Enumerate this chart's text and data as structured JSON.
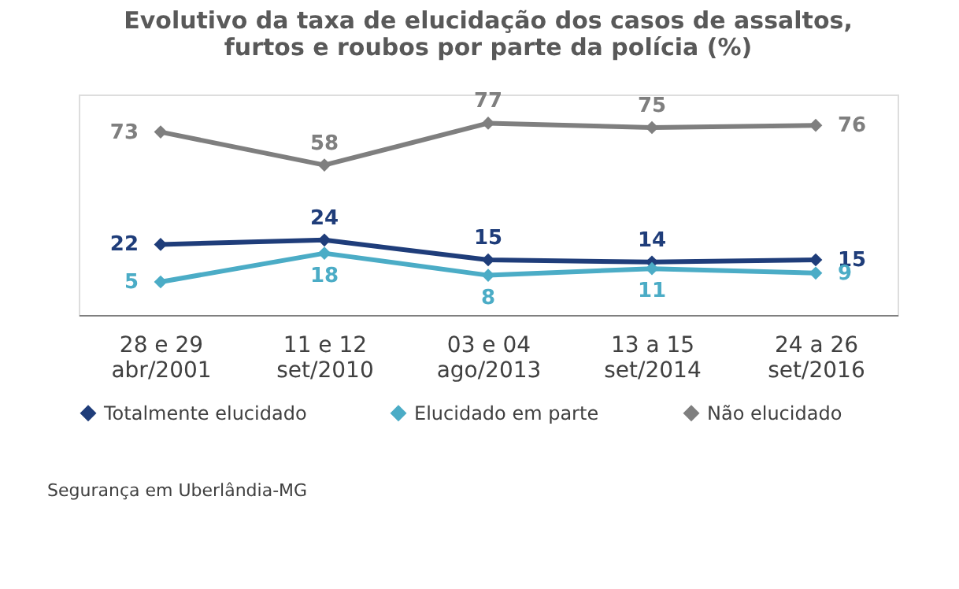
{
  "chart_data": {
    "type": "line",
    "title": "Evolutivo da taxa de elucidação dos casos de assaltos,\nfurtos e roubos por parte da polícia (%)",
    "categories": [
      "28 e 29\nabr/2001",
      "11 e 12\nset/2010",
      "03 e 04\nago/2013",
      "13 a 15\nset/2014",
      "24 a 26\nset/2016"
    ],
    "series": [
      {
        "name": "Totalmente elucidado",
        "color": "#1f3d7a",
        "values": [
          22,
          24,
          15,
          14,
          15
        ]
      },
      {
        "name": "Elucidado em parte",
        "color": "#4bacc6",
        "values": [
          5,
          18,
          8,
          11,
          9
        ]
      },
      {
        "name": "Não elucidado",
        "color": "#7f7f7f",
        "values": [
          73,
          58,
          77,
          75,
          76
        ]
      }
    ],
    "data_labels": true,
    "marker": "diamond",
    "line_style": "solid",
    "grid": false,
    "legend": "bottom",
    "annotations": [
      "Segurança em Uberlândia-MG"
    ]
  }
}
